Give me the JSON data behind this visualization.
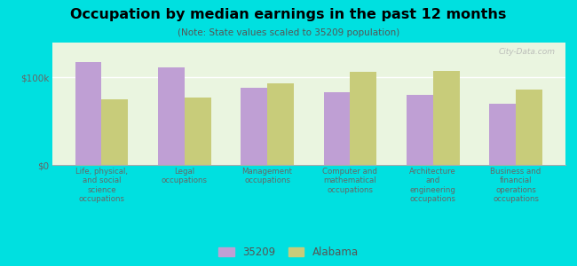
{
  "title": "Occupation by median earnings in the past 12 months",
  "subtitle": "(Note: State values scaled to 35209 population)",
  "categories": [
    "Life, physical,\nand social\nscience\noccupations",
    "Legal\noccupations",
    "Management\noccupations",
    "Computer and\nmathematical\noccupations",
    "Architecture\nand\nengineering\noccupations",
    "Business and\nfinancial\noperations\noccupations"
  ],
  "values_35209": [
    118000,
    112000,
    88000,
    83000,
    80000,
    70000
  ],
  "values_alabama": [
    75000,
    77000,
    93000,
    107000,
    108000,
    86000
  ],
  "color_35209": "#bf9fd4",
  "color_alabama": "#c8cc7a",
  "yticks": [
    0,
    100000
  ],
  "ytick_labels": [
    "$0",
    "$100k"
  ],
  "background_color": "#00e0e0",
  "plot_bg_color": "#eaf5e0",
  "legend_label_35209": "35209",
  "legend_label_alabama": "Alabama",
  "bar_width": 0.32,
  "watermark": "City-Data.com",
  "ylim_max": 140000
}
